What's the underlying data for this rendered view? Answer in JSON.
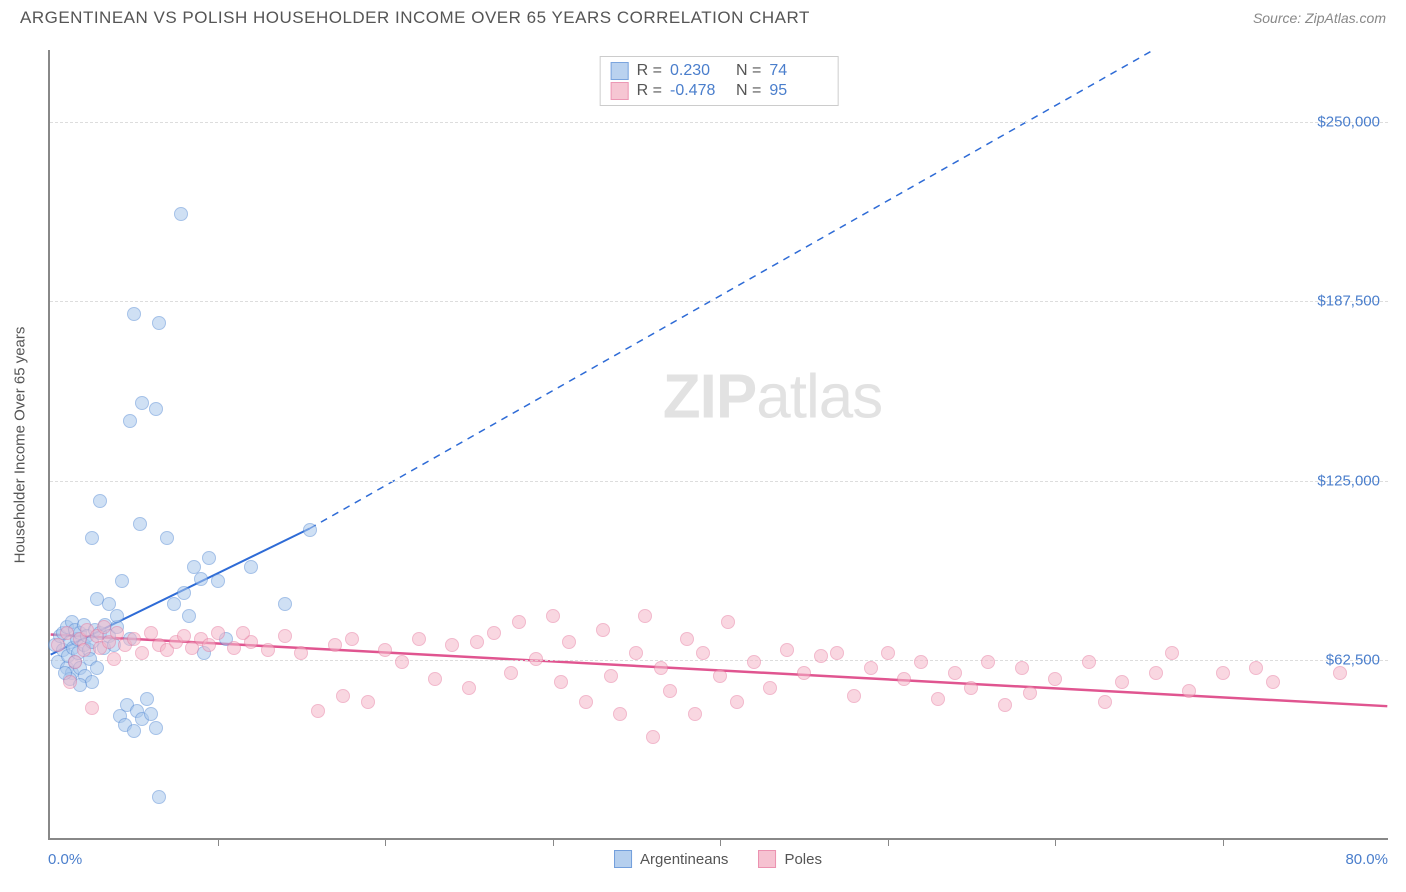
{
  "header": {
    "title": "ARGENTINEAN VS POLISH HOUSEHOLDER INCOME OVER 65 YEARS CORRELATION CHART",
    "source": "Source: ZipAtlas.com"
  },
  "chart": {
    "type": "scatter",
    "y_axis_title": "Householder Income Over 65 years",
    "xlim": [
      0,
      80
    ],
    "ylim": [
      0,
      275000
    ],
    "x_start_label": "0.0%",
    "x_end_label": "80.0%",
    "x_ticks": [
      10,
      20,
      30,
      40,
      50,
      60,
      70
    ],
    "y_ticks": [
      {
        "value": 62500,
        "label": "$62,500"
      },
      {
        "value": 125000,
        "label": "$125,000"
      },
      {
        "value": 187500,
        "label": "$187,500"
      },
      {
        "value": 250000,
        "label": "$250,000"
      }
    ],
    "grid_color": "#dddddd",
    "background_color": "#ffffff",
    "watermark": {
      "bold": "ZIP",
      "rest": "atlas"
    },
    "point_radius": 7,
    "series": [
      {
        "name": "Argentineans",
        "fill": "#a9c7ec",
        "stroke": "#5b8fd6",
        "fill_opacity": 0.55,
        "R": "0.230",
        "N": "74",
        "trend": {
          "x1": 0,
          "y1": 64000,
          "x2": 15.5,
          "y2": 108000,
          "dash_to_x": 66,
          "dash_to_y": 275000,
          "color": "#2e6bd6",
          "width": 2
        },
        "points": [
          [
            0.3,
            68000
          ],
          [
            0.5,
            62000
          ],
          [
            0.6,
            71000
          ],
          [
            0.8,
            66000
          ],
          [
            0.8,
            72000
          ],
          [
            1.0,
            60000
          ],
          [
            1.0,
            74000
          ],
          [
            1.1,
            64000
          ],
          [
            1.2,
            69000
          ],
          [
            1.3,
            58000
          ],
          [
            1.3,
            76000
          ],
          [
            1.4,
            67000
          ],
          [
            1.5,
            62000
          ],
          [
            1.5,
            73000
          ],
          [
            1.6,
            70000
          ],
          [
            1.7,
            65000
          ],
          [
            1.8,
            72000
          ],
          [
            1.8,
            60000
          ],
          [
            2.0,
            68000
          ],
          [
            2.0,
            75000
          ],
          [
            2.1,
            57000
          ],
          [
            2.2,
            71000
          ],
          [
            2.3,
            66000
          ],
          [
            2.4,
            63000
          ],
          [
            2.5,
            69000
          ],
          [
            2.5,
            55000
          ],
          [
            2.7,
            73000
          ],
          [
            2.8,
            60000
          ],
          [
            3.0,
            72000
          ],
          [
            3.2,
            67000
          ],
          [
            3.3,
            75000
          ],
          [
            3.5,
            71000
          ],
          [
            3.8,
            68000
          ],
          [
            4.0,
            74000
          ],
          [
            4.2,
            43000
          ],
          [
            4.5,
            40000
          ],
          [
            4.6,
            47000
          ],
          [
            4.8,
            70000
          ],
          [
            5.0,
            38000
          ],
          [
            5.2,
            45000
          ],
          [
            5.4,
            110000
          ],
          [
            5.5,
            42000
          ],
          [
            5.8,
            49000
          ],
          [
            6.0,
            44000
          ],
          [
            6.3,
            39000
          ],
          [
            6.5,
            15000
          ],
          [
            7.0,
            105000
          ],
          [
            7.4,
            82000
          ],
          [
            8.0,
            86000
          ],
          [
            8.3,
            78000
          ],
          [
            8.6,
            95000
          ],
          [
            9.0,
            91000
          ],
          [
            9.5,
            98000
          ],
          [
            10.0,
            90000
          ],
          [
            5.0,
            183000
          ],
          [
            6.5,
            180000
          ],
          [
            4.8,
            146000
          ],
          [
            6.3,
            150000
          ],
          [
            5.5,
            152000
          ],
          [
            7.8,
            218000
          ],
          [
            14.0,
            82000
          ],
          [
            12.0,
            95000
          ],
          [
            15.5,
            108000
          ],
          [
            4.0,
            78000
          ],
          [
            3.5,
            82000
          ],
          [
            2.8,
            84000
          ],
          [
            4.3,
            90000
          ],
          [
            3.0,
            118000
          ],
          [
            2.5,
            105000
          ],
          [
            1.2,
            56000
          ],
          [
            1.8,
            54000
          ],
          [
            0.9,
            58000
          ],
          [
            9.2,
            65000
          ],
          [
            10.5,
            70000
          ]
        ]
      },
      {
        "name": "Poles",
        "fill": "#f5b8c9",
        "stroke": "#e87fa3",
        "fill_opacity": 0.55,
        "R": "-0.478",
        "N": "95",
        "trend": {
          "x1": 0,
          "y1": 71000,
          "x2": 80,
          "y2": 46000,
          "color": "#e05590",
          "width": 2.5
        },
        "points": [
          [
            0.5,
            68000
          ],
          [
            1.0,
            72000
          ],
          [
            1.2,
            55000
          ],
          [
            1.5,
            62000
          ],
          [
            1.8,
            70000
          ],
          [
            2.0,
            66000
          ],
          [
            2.2,
            73000
          ],
          [
            2.5,
            46000
          ],
          [
            2.8,
            71000
          ],
          [
            3.0,
            67000
          ],
          [
            3.2,
            74000
          ],
          [
            3.5,
            69000
          ],
          [
            3.8,
            63000
          ],
          [
            4.0,
            72000
          ],
          [
            4.5,
            68000
          ],
          [
            5.0,
            70000
          ],
          [
            5.5,
            65000
          ],
          [
            6.0,
            72000
          ],
          [
            6.5,
            68000
          ],
          [
            7.0,
            66000
          ],
          [
            7.5,
            69000
          ],
          [
            8.0,
            71000
          ],
          [
            8.5,
            67000
          ],
          [
            9.0,
            70000
          ],
          [
            9.5,
            68000
          ],
          [
            10.0,
            72000
          ],
          [
            11.0,
            67000
          ],
          [
            12.0,
            69000
          ],
          [
            13.0,
            66000
          ],
          [
            14.0,
            71000
          ],
          [
            15.0,
            65000
          ],
          [
            16.0,
            45000
          ],
          [
            17.0,
            68000
          ],
          [
            17.5,
            50000
          ],
          [
            18.0,
            70000
          ],
          [
            19.0,
            48000
          ],
          [
            20.0,
            66000
          ],
          [
            21.0,
            62000
          ],
          [
            22.0,
            70000
          ],
          [
            23.0,
            56000
          ],
          [
            24.0,
            68000
          ],
          [
            25.0,
            53000
          ],
          [
            25.5,
            69000
          ],
          [
            26.5,
            72000
          ],
          [
            27.5,
            58000
          ],
          [
            28.0,
            76000
          ],
          [
            29.0,
            63000
          ],
          [
            30.0,
            78000
          ],
          [
            30.5,
            55000
          ],
          [
            31.0,
            69000
          ],
          [
            32.0,
            48000
          ],
          [
            33.0,
            73000
          ],
          [
            33.5,
            57000
          ],
          [
            34.0,
            44000
          ],
          [
            35.0,
            65000
          ],
          [
            35.5,
            78000
          ],
          [
            36.0,
            36000
          ],
          [
            36.5,
            60000
          ],
          [
            37.0,
            52000
          ],
          [
            38.0,
            70000
          ],
          [
            38.5,
            44000
          ],
          [
            39.0,
            65000
          ],
          [
            40.0,
            57000
          ],
          [
            40.5,
            76000
          ],
          [
            41.0,
            48000
          ],
          [
            42.0,
            62000
          ],
          [
            43.0,
            53000
          ],
          [
            44.0,
            66000
          ],
          [
            45.0,
            58000
          ],
          [
            46.0,
            64000
          ],
          [
            47.0,
            65000
          ],
          [
            48.0,
            50000
          ],
          [
            49.0,
            60000
          ],
          [
            50.0,
            65000
          ],
          [
            51.0,
            56000
          ],
          [
            52.0,
            62000
          ],
          [
            53.0,
            49000
          ],
          [
            54.0,
            58000
          ],
          [
            55.0,
            53000
          ],
          [
            56.0,
            62000
          ],
          [
            57.0,
            47000
          ],
          [
            58.0,
            60000
          ],
          [
            58.5,
            51000
          ],
          [
            60.0,
            56000
          ],
          [
            62.0,
            62000
          ],
          [
            63.0,
            48000
          ],
          [
            64.0,
            55000
          ],
          [
            66.0,
            58000
          ],
          [
            67.0,
            65000
          ],
          [
            68.0,
            52000
          ],
          [
            70.0,
            58000
          ],
          [
            72.0,
            60000
          ],
          [
            73.0,
            55000
          ],
          [
            77.0,
            58000
          ],
          [
            11.5,
            72000
          ]
        ]
      }
    ]
  }
}
